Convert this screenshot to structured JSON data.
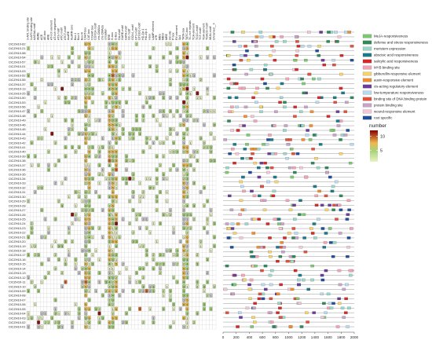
{
  "chart_data": [
    {
      "type": "heatmap",
      "columns": [
        "3-AF1 binding site",
        "3-AF3 binding site",
        "AAGAA-motif",
        "ABRE",
        "ACE",
        "AE-box",
        "ARE",
        "AT-rich element",
        "AT-rich sequence",
        "AT1-motif",
        "ATC-motif",
        "ATCT-motif",
        "AuxRE",
        "AuxRR-core",
        "Box 4",
        "Box II",
        "Box III",
        "CAAT-box",
        "CAT-box",
        "CCAAT-box",
        "CGTCA-motif",
        "chs-CMA1a",
        "chs-CMA2a",
        "circadian",
        "ERE",
        "G-box",
        "G-Box",
        "GA-motif",
        "GARE-motif",
        "GATA-motif",
        "GC-motif",
        "GCN4_motif",
        "GT1-motif",
        "GTGGC-motif",
        "HD-Zip 1",
        "HD-Zip 3",
        "I-box",
        "LAMP-element",
        "LTR",
        "MBS",
        "MBSI",
        "MRE",
        "O2-site",
        "P-box",
        "RY-element",
        "Sp1",
        "TATA-box",
        "TATC-box",
        "TC-rich repeats",
        "TCA-element",
        "TCCC-motif",
        "TCT-motif",
        "TGA-element",
        "TGACG-motif",
        "WUN-motif",
        "Unnamed__4"
      ],
      "rows": [
        "CiCZH10-62",
        "CiCZH10-21",
        "CiCZH10-58",
        "CiCZH10-54",
        "CiCZH10-57",
        "CiCZH10-01",
        "CiCZH10-03",
        "CiCZH10-52",
        "CiCZH10-55",
        "CiCZH10-37",
        "CiCZH10-13",
        "CiCZH10-25",
        "CiCZH10-50",
        "CiCZH10-53",
        "CiCZH10-56",
        "CiCZH10-47",
        "CiCZH10-48",
        "CiCZH10-49",
        "CiCZH10-46",
        "CiCZH10-45",
        "CiCZH10-44",
        "CiCZH10-43",
        "CiCZH10-42",
        "CiCZH10-41",
        "CiCZH10-40",
        "CiCZH10-39",
        "CiCZH10-38",
        "CiCZH10-37",
        "CiCZH10-36",
        "CiCZH10-35",
        "CiCZH10-34",
        "CiCZH10-33",
        "CiCZH10-32",
        "CiCZH10-31",
        "CiCZH10-30",
        "CiCZH10-29",
        "CiCZH10-28",
        "CiCZH10-27",
        "CiCZH10-26",
        "CiCZH10-25",
        "CiCZH10-24",
        "CiCZH10-23",
        "CiCZH10-22",
        "CiCZH10-21",
        "CiCZH10-20",
        "CiCZH10-19",
        "CiCZH10-18",
        "CiCZH10-17",
        "CiCZH10-16",
        "CiCZH10-15",
        "CiCZH10-14",
        "CiCZH10-13",
        "CiCZH10-12",
        "CiCZH10-11",
        "CiCZH10-10",
        "CiCZH10-09",
        "CiCZH10-08",
        "CiCZH10-07",
        "CiCZH10-06",
        "CiCZH10-05",
        "CiCZH10-04",
        "CiCZH10-03",
        "CiCZH10-02",
        "CiCZH10-01"
      ],
      "legend_title": "number",
      "color_scale": {
        "low": "#e9f2c2",
        "mid": "#f0b84c",
        "high": "#8b0000",
        "ticks": [
          5,
          10
        ]
      }
    },
    {
      "type": "scatter",
      "xlim": [
        0,
        2000
      ],
      "xticks": [
        0,
        200,
        400,
        600,
        800,
        1000,
        1200,
        1400,
        1600,
        1800,
        2000
      ],
      "legend_placement": "top-right",
      "series": [
        {
          "name": "MeJA-responsiveness",
          "color": "#7bc96f"
        },
        {
          "name": "defense and stress responsiveness",
          "color": "#2e8b57"
        },
        {
          "name": "meristem expression",
          "color": "#9bd7c8"
        },
        {
          "name": "abscisic acid responsiveness",
          "color": "#1a7a8a"
        },
        {
          "name": "salicylic acid responsiveness",
          "color": "#d62828"
        },
        {
          "name": "MYB binding site",
          "color": "#f4a3b5"
        },
        {
          "name": "gibberellin-responsive element",
          "color": "#f6d26b"
        },
        {
          "name": "auxin-responsive element",
          "color": "#f08c2e"
        },
        {
          "name": "cis-acting regulatory element",
          "color": "#6a3d9a"
        },
        {
          "name": "low-temperature responsiveness",
          "color": "#b8d9f0"
        },
        {
          "name": "binding site of DNA binding protein",
          "color": "#e2503c"
        },
        {
          "name": "protein binding site",
          "color": "#c8a2c8"
        },
        {
          "name": "wound-responsive element",
          "color": "#f4c6d6"
        },
        {
          "name": "root specific",
          "color": "#1f4e9c"
        }
      ]
    }
  ]
}
